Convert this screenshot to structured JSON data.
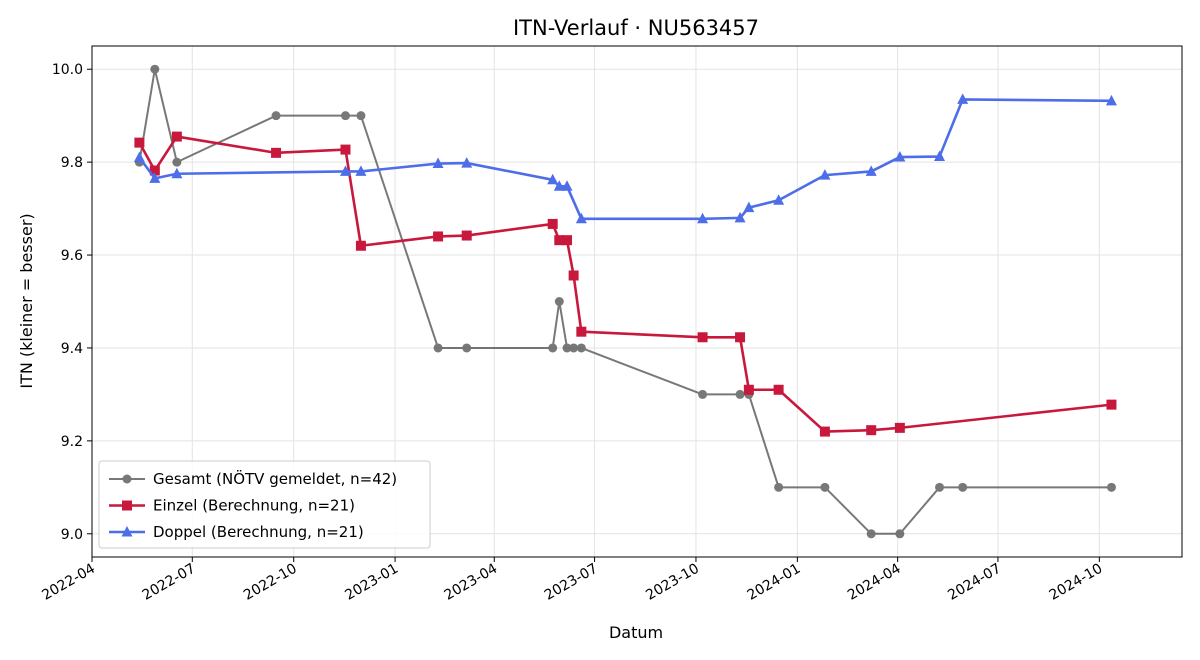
{
  "chart_data": {
    "type": "line",
    "title": "ITN-Verlauf · NU563457",
    "xlabel": "Datum",
    "ylabel": "ITN  (kleiner = besser)",
    "xlim": [
      "2022-04-01",
      "2024-12-15"
    ],
    "ylim": [
      8.95,
      10.05
    ],
    "x_ticks": [
      "2022-04",
      "2022-07",
      "2022-10",
      "2023-01",
      "2023-04",
      "2023-07",
      "2023-10",
      "2024-01",
      "2024-04",
      "2024-07",
      "2024-10"
    ],
    "y_ticks": [
      "9.0",
      "9.2",
      "9.4",
      "9.6",
      "9.8",
      "10.0"
    ],
    "grid": true,
    "legend_position": "lower-left",
    "series": [
      {
        "name": "Gesamt (NÖTV gemeldet, n=42)",
        "color": "#404040",
        "marker": "circle",
        "points": [
          {
            "x": "2022-05-14",
            "y": 9.8
          },
          {
            "x": "2022-05-28",
            "y": 10.0
          },
          {
            "x": "2022-06-17",
            "y": 9.8
          },
          {
            "x": "2022-09-15",
            "y": 9.9
          },
          {
            "x": "2022-11-17",
            "y": 9.9
          },
          {
            "x": "2022-12-01",
            "y": 9.9
          },
          {
            "x": "2023-02-09",
            "y": 9.4
          },
          {
            "x": "2023-03-07",
            "y": 9.4
          },
          {
            "x": "2023-05-24",
            "y": 9.4
          },
          {
            "x": "2023-05-30",
            "y": 9.5
          },
          {
            "x": "2023-06-06",
            "y": 9.4
          },
          {
            "x": "2023-06-12",
            "y": 9.4
          },
          {
            "x": "2023-06-19",
            "y": 9.4
          },
          {
            "x": "2023-10-07",
            "y": 9.3
          },
          {
            "x": "2023-11-10",
            "y": 9.3
          },
          {
            "x": "2023-11-18",
            "y": 9.3
          },
          {
            "x": "2023-12-15",
            "y": 9.1
          },
          {
            "x": "2024-01-26",
            "y": 9.1
          },
          {
            "x": "2024-03-08",
            "y": 9.0
          },
          {
            "x": "2024-04-03",
            "y": 9.0
          },
          {
            "x": "2024-05-09",
            "y": 9.1
          },
          {
            "x": "2024-05-30",
            "y": 9.1
          },
          {
            "x": "2024-10-12",
            "y": 9.1
          }
        ]
      },
      {
        "name": "Einzel (Berechnung, n=21)",
        "color": "#c8193c",
        "marker": "square",
        "points": [
          {
            "x": "2022-05-14",
            "y": 9.842
          },
          {
            "x": "2022-05-28",
            "y": 9.782
          },
          {
            "x": "2022-06-17",
            "y": 9.855
          },
          {
            "x": "2022-09-15",
            "y": 9.82
          },
          {
            "x": "2022-11-17",
            "y": 9.827
          },
          {
            "x": "2022-12-01",
            "y": 9.62
          },
          {
            "x": "2023-02-09",
            "y": 9.64
          },
          {
            "x": "2023-03-07",
            "y": 9.642
          },
          {
            "x": "2023-05-24",
            "y": 9.667
          },
          {
            "x": "2023-05-30",
            "y": 9.632
          },
          {
            "x": "2023-06-06",
            "y": 9.632
          },
          {
            "x": "2023-06-12",
            "y": 9.556
          },
          {
            "x": "2023-06-19",
            "y": 9.435
          },
          {
            "x": "2023-10-07",
            "y": 9.423
          },
          {
            "x": "2023-11-10",
            "y": 9.423
          },
          {
            "x": "2023-11-18",
            "y": 9.31
          },
          {
            "x": "2023-12-15",
            "y": 9.31
          },
          {
            "x": "2024-01-26",
            "y": 9.22
          },
          {
            "x": "2024-03-08",
            "y": 9.223
          },
          {
            "x": "2024-04-03",
            "y": 9.228
          },
          {
            "x": "2024-10-12",
            "y": 9.278
          }
        ]
      },
      {
        "name": "Doppel (Berechnung, n=21)",
        "color": "#4d6ee8",
        "marker": "triangle",
        "points": [
          {
            "x": "2022-05-14",
            "y": 9.81
          },
          {
            "x": "2022-05-28",
            "y": 9.765
          },
          {
            "x": "2022-06-17",
            "y": 9.775
          },
          {
            "x": "2022-11-17",
            "y": 9.78
          },
          {
            "x": "2022-12-01",
            "y": 9.78
          },
          {
            "x": "2023-02-09",
            "y": 9.797
          },
          {
            "x": "2023-03-07",
            "y": 9.798
          },
          {
            "x": "2023-05-24",
            "y": 9.762
          },
          {
            "x": "2023-05-30",
            "y": 9.748
          },
          {
            "x": "2023-06-06",
            "y": 9.748
          },
          {
            "x": "2023-06-19",
            "y": 9.678
          },
          {
            "x": "2023-10-07",
            "y": 9.678
          },
          {
            "x": "2023-11-10",
            "y": 9.68
          },
          {
            "x": "2023-11-18",
            "y": 9.702
          },
          {
            "x": "2023-12-15",
            "y": 9.718
          },
          {
            "x": "2024-01-26",
            "y": 9.772
          },
          {
            "x": "2024-03-08",
            "y": 9.78
          },
          {
            "x": "2024-04-03",
            "y": 9.811
          },
          {
            "x": "2024-05-09",
            "y": 9.812
          },
          {
            "x": "2024-05-30",
            "y": 9.935
          },
          {
            "x": "2024-10-12",
            "y": 9.932
          }
        ]
      }
    ]
  }
}
